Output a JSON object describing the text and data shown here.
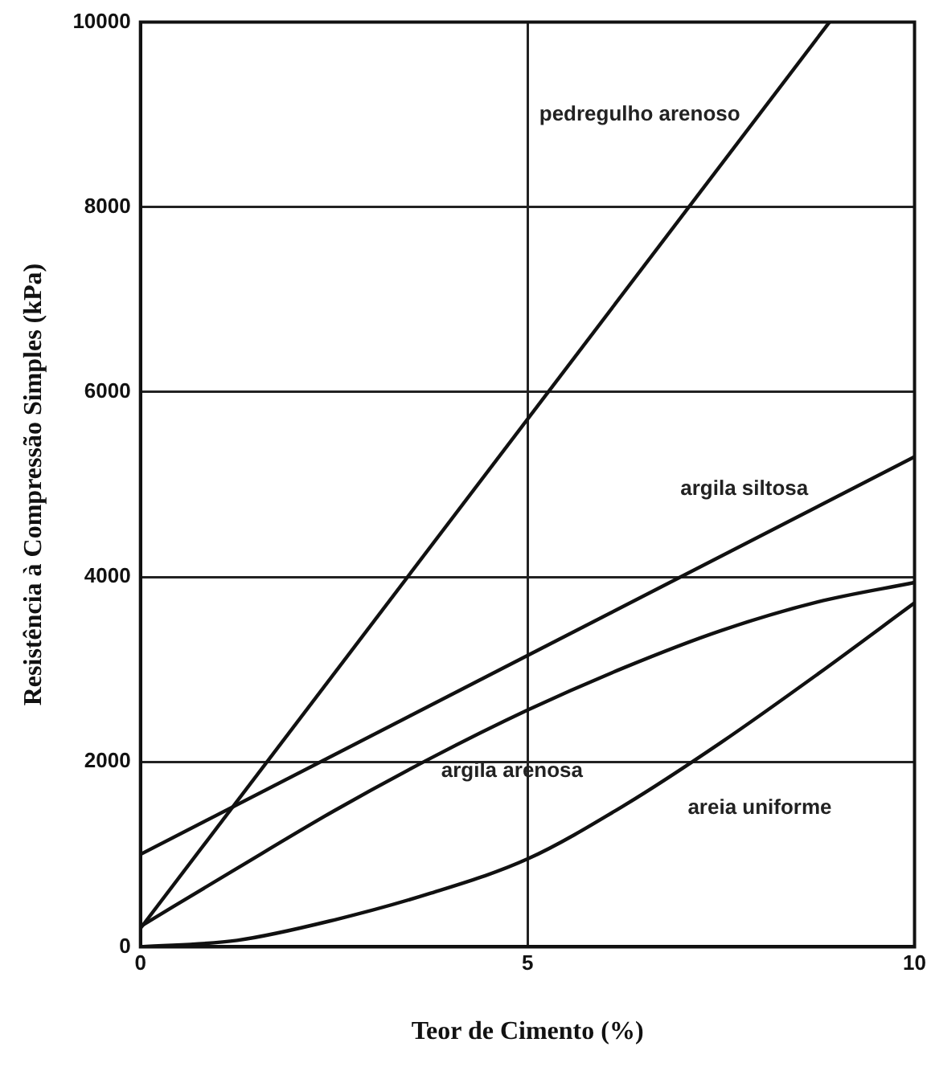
{
  "chart_data": {
    "type": "line",
    "xlabel": "Teor de Cimento (%)",
    "ylabel": "Resistência à Compressão Simples (kPa)",
    "xlim": [
      0,
      10
    ],
    "xticks": [
      0,
      5,
      10
    ],
    "ylim": [
      0,
      10000
    ],
    "yticks": [
      0,
      2000,
      4000,
      6000,
      8000,
      10000
    ],
    "grid": true,
    "legend": false,
    "marker": "none",
    "line_style": "solid",
    "series": [
      {
        "name": "pedregulho arenoso",
        "color": "#111111",
        "x": [
          0,
          8.9
        ],
        "values": [
          200,
          10000
        ]
      },
      {
        "name": "argila siltosa",
        "color": "#111111",
        "x": [
          0,
          10
        ],
        "values": [
          1000,
          5300
        ]
      },
      {
        "name": "argila arenosa",
        "color": "#111111",
        "x": [
          0,
          1.25,
          2.5,
          3.75,
          5,
          6.25,
          7.5,
          8.75,
          10
        ],
        "values": [
          220,
          850,
          1470,
          2040,
          2560,
          3020,
          3420,
          3730,
          3940
        ]
      },
      {
        "name": "areia uniforme",
        "color": "#111111",
        "x": [
          0,
          1.25,
          2.5,
          3.75,
          5,
          6.25,
          7.5,
          8.75,
          10
        ],
        "values": [
          0,
          70,
          290,
          580,
          950,
          1530,
          2210,
          2950,
          3720
        ]
      }
    ]
  }
}
